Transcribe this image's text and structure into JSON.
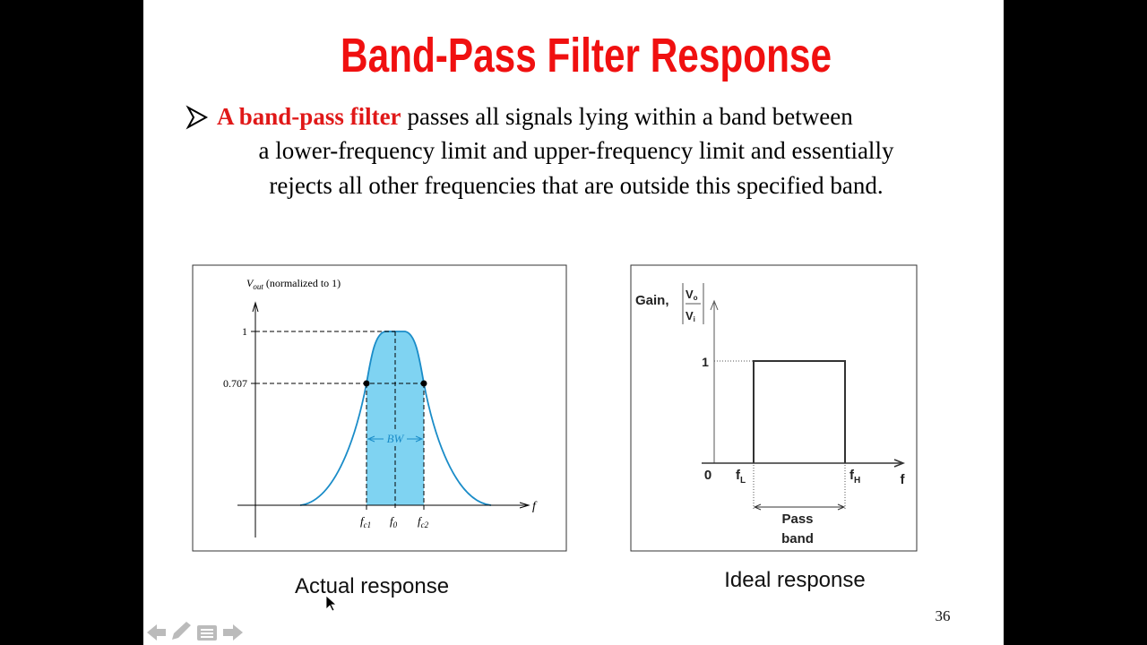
{
  "slide": {
    "title": "Band-Pass Filter Response",
    "bullet": {
      "highlight": "A band-pass filter",
      "lines": [
        "passes all signals lying within a band between",
        "a lower-frequency limit and upper-frequency limit and essentially",
        "rejects all other frequencies that are outside this specified band."
      ]
    },
    "actual_figure": {
      "y_label": {
        "symbol": "V",
        "subscript": "out",
        "text": "(normalized to 1)"
      },
      "y_levels": [
        "1",
        "0.707"
      ],
      "bandwidth_label": "BW",
      "x_labels": [
        {
          "symbol": "f",
          "subscript": "c1"
        },
        {
          "symbol": "f",
          "subscript": "0"
        },
        {
          "symbol": "f",
          "subscript": "c2"
        }
      ],
      "x_axis_label": "f",
      "caption": "Actual response"
    },
    "ideal_figure": {
      "gain_label": "Gain,",
      "ratio": {
        "numerator": {
          "symbol": "V",
          "subscript": "o"
        },
        "denominator": {
          "symbol": "V",
          "subscript": "i"
        }
      },
      "y_level": "1",
      "origin_label": "0",
      "x_labels": [
        {
          "symbol": "f",
          "subscript": "L"
        },
        {
          "symbol": "f",
          "subscript": "H"
        }
      ],
      "x_axis_label": "f",
      "band_label": [
        "Pass",
        "band"
      ],
      "caption": "Ideal response"
    },
    "page_number": "36"
  }
}
